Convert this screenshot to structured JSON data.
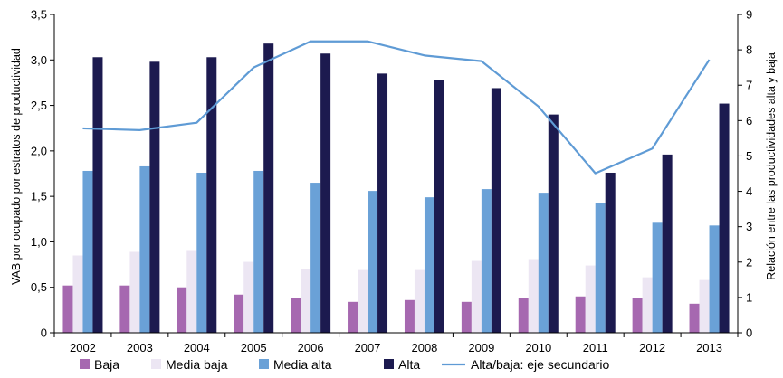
{
  "chart_data": {
    "type": "bar",
    "title": "",
    "xlabel": "",
    "ylabel": "VAB por ocupado por estratos de productividad",
    "y2label": "Relación entre las productividades alta y baja",
    "categories": [
      "2002",
      "2003",
      "2004",
      "2005",
      "2006",
      "2007",
      "2008",
      "2009",
      "2010",
      "2011",
      "2012",
      "2013"
    ],
    "ylim": [
      0,
      3.5
    ],
    "y2lim": [
      0,
      9
    ],
    "yticks": [
      "0",
      "0,5",
      "1,0",
      "1,5",
      "2,0",
      "2,5",
      "3,0",
      "3,5"
    ],
    "y2ticks": [
      "0",
      "1",
      "2",
      "3",
      "4",
      "5",
      "6",
      "7",
      "8",
      "9"
    ],
    "grid": false,
    "legend_position": "bottom",
    "series": [
      {
        "name": "Baja",
        "type": "bar",
        "axis": "primary",
        "color": "#a668b0",
        "values": [
          0.52,
          0.52,
          0.5,
          0.42,
          0.38,
          0.34,
          0.36,
          0.34,
          0.38,
          0.4,
          0.38,
          0.32
        ]
      },
      {
        "name": "Media baja",
        "type": "bar",
        "axis": "primary",
        "color": "#ece6f3",
        "values": [
          0.85,
          0.89,
          0.9,
          0.78,
          0.7,
          0.69,
          0.69,
          0.79,
          0.81,
          0.74,
          0.61,
          0.58
        ]
      },
      {
        "name": "Media alta",
        "type": "bar",
        "axis": "primary",
        "color": "#6aa1d7",
        "values": [
          1.78,
          1.83,
          1.76,
          1.78,
          1.65,
          1.56,
          1.49,
          1.58,
          1.54,
          1.43,
          1.21,
          1.18
        ]
      },
      {
        "name": "Alta",
        "type": "bar",
        "axis": "primary",
        "color": "#1c1a4f",
        "values": [
          3.03,
          2.98,
          3.03,
          3.18,
          3.07,
          2.85,
          2.78,
          2.69,
          2.4,
          1.76,
          1.96,
          2.52
        ]
      },
      {
        "name": "Alta/baja: eje secundario",
        "type": "line",
        "axis": "secondary",
        "color": "#5f9bd5",
        "values": [
          5.78,
          5.73,
          5.94,
          7.5,
          8.24,
          8.24,
          7.84,
          7.68,
          6.4,
          4.51,
          5.21,
          7.72
        ]
      }
    ]
  }
}
